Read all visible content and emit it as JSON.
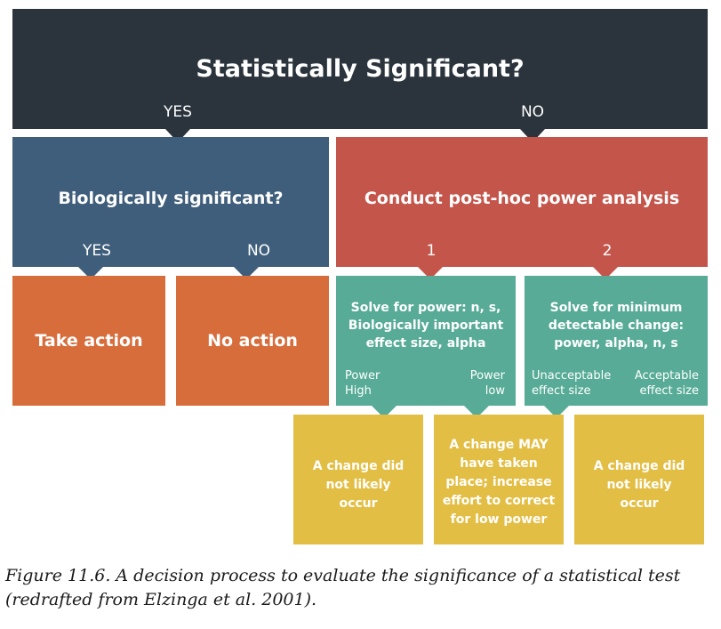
{
  "colors": {
    "top": "#2b343d",
    "blue": "#3f5e7b",
    "red": "#c4554b",
    "orange": "#d86d3c",
    "teal": "#57ab97",
    "yellow": "#e3be44"
  },
  "top": {
    "title": "Statistically Significant?",
    "yes": "YES",
    "no": "NO"
  },
  "bio": {
    "title": "Biologically significant?",
    "yes": "YES",
    "no": "NO"
  },
  "posthoc": {
    "title": "Conduct post-hoc power analysis",
    "one": "1",
    "two": "2"
  },
  "take_action": "Take action",
  "no_action": "No action",
  "solve_power": {
    "lines": [
      "Solve for power: n, s,",
      "Biologically important",
      "effect size, alpha"
    ],
    "left_label": [
      "Power",
      "High"
    ],
    "right_label": [
      "Power",
      "low"
    ]
  },
  "solve_min": {
    "lines": [
      "Solve for minimum",
      "detectable change:",
      "power, alpha, n, s"
    ],
    "left_label": [
      "Unacceptable",
      "effect size"
    ],
    "right_label": [
      "Acceptable",
      "effect size"
    ]
  },
  "outcome1": [
    "A change did",
    "not likely",
    "occur"
  ],
  "outcome2": [
    "A change MAY",
    "have taken",
    "place; increase",
    "effort to correct",
    "for low power"
  ],
  "outcome3": [
    "A change did",
    "not likely",
    "occur"
  ],
  "caption": {
    "line1": "Figure 11.6. A decision process to evaluate the significance of a statistical test",
    "line2": "(redrafted from Elzinga et al. 2001)."
  }
}
